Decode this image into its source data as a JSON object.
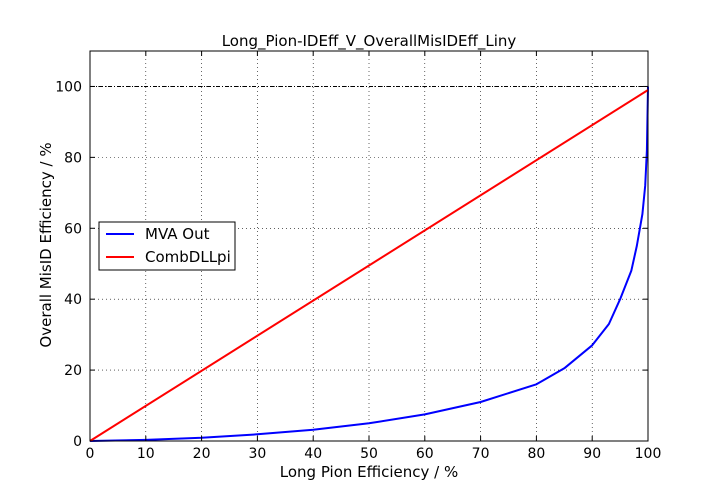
{
  "chart_data": {
    "type": "line",
    "title": "Long_Pion-IDEff_V_OverallMisIDEff_Liny",
    "xlabel": "Long Pion Efficiency / %",
    "ylabel": "Overall MisID Efficiency / %",
    "xlim": [
      0,
      100
    ],
    "ylim": [
      0,
      110
    ],
    "xticks": [
      "0",
      "10",
      "20",
      "30",
      "40",
      "50",
      "60",
      "70",
      "80",
      "90",
      "100"
    ],
    "yticks": [
      "0",
      "20",
      "40",
      "60",
      "80",
      "100"
    ],
    "grid": true,
    "legend_placement": "center-left",
    "reference_line_y": 100,
    "series": [
      {
        "name": "MVA Out",
        "color": "#0000ff",
        "x": [
          0,
          10,
          20,
          30,
          40,
          50,
          60,
          70,
          80,
          85,
          90,
          93,
          95,
          97,
          98,
          99,
          99.5,
          99.8,
          100
        ],
        "y": [
          0,
          0.3,
          0.9,
          1.9,
          3.2,
          5.0,
          7.5,
          11.0,
          16.0,
          20.5,
          27.0,
          33.0,
          40.0,
          48.0,
          55.0,
          64.0,
          72.0,
          82.0,
          100
        ]
      },
      {
        "name": "CombDLLpi",
        "color": "#ff0000",
        "x": [
          0,
          100
        ],
        "y": [
          0,
          99
        ]
      }
    ]
  }
}
